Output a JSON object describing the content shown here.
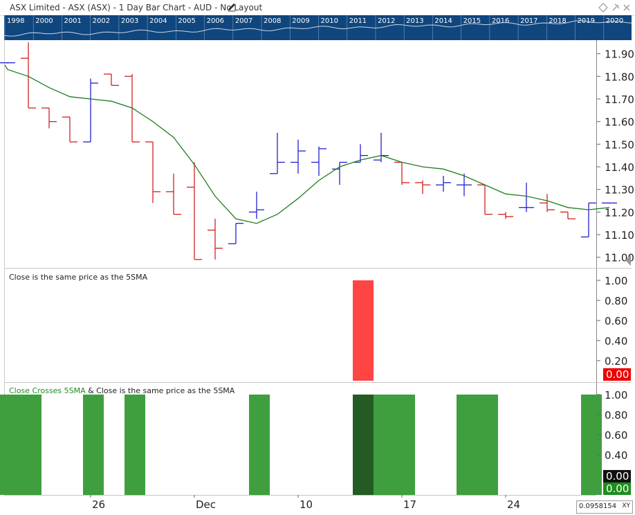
{
  "window": {
    "title": "ASX Limited - ASX (ASX) - 1 Day Bar Chart - AUD - No Layout",
    "edit_icon": "pencil-icon",
    "header_icons": [
      "diamond-icon",
      "pin-icon",
      "close-icon"
    ]
  },
  "timeline": {
    "years": [
      "1998",
      "2000",
      "2001",
      "2002",
      "2003",
      "2004",
      "2005",
      "2006",
      "2007",
      "2008",
      "2009",
      "2010",
      "2011",
      "2012",
      "2013",
      "2014",
      "2015",
      "2016",
      "2017",
      "2018",
      "2019",
      "2020"
    ],
    "background": "#10467e"
  },
  "colors": {
    "up_bar": "#1f1fd1",
    "down_bar": "#d11f1f",
    "sma_line": "#1e7d1e",
    "indicator_red": "#ff4444",
    "indicator_green": "#3f9f3f",
    "indicator_dark_green": "#245a24",
    "label_red_bg": "#ee0000",
    "label_green_bg": "#1e8c1e",
    "label_black_bg": "#111111"
  },
  "chart_data": [
    {
      "type": "bar",
      "subtype": "ohlc",
      "series_overlay": "5SMA",
      "ylim": [
        10.95,
        11.96
      ],
      "y_ticks": [
        "11.90",
        "11.80",
        "11.70",
        "11.60",
        "11.50",
        "11.40",
        "11.30",
        "11.20",
        "11.10",
        "11.00"
      ],
      "x_labels": [
        {
          "label": "26",
          "index": 4.5
        },
        {
          "label": "Dec",
          "index": 9.5
        },
        {
          "label": "10",
          "index": 14.5
        },
        {
          "label": "17",
          "index": 19.5
        },
        {
          "label": "24",
          "index": 24.5
        }
      ],
      "bars": [
        {
          "o": 11.86,
          "h": 11.86,
          "l": 11.86,
          "c": 11.86
        },
        {
          "o": 11.88,
          "h": 11.95,
          "l": 11.66,
          "c": 11.66
        },
        {
          "o": 11.66,
          "h": 11.66,
          "l": 11.57,
          "c": 11.6
        },
        {
          "o": 11.62,
          "h": 11.62,
          "l": 11.51,
          "c": 11.51
        },
        {
          "o": 11.51,
          "h": 11.79,
          "l": 11.51,
          "c": 11.77
        },
        {
          "o": 11.81,
          "h": 11.81,
          "l": 11.76,
          "c": 11.76
        },
        {
          "o": 11.8,
          "h": 11.81,
          "l": 11.51,
          "c": 11.51
        },
        {
          "o": 11.51,
          "h": 11.51,
          "l": 11.24,
          "c": 11.29
        },
        {
          "o": 11.29,
          "h": 11.37,
          "l": 11.19,
          "c": 11.19
        },
        {
          "o": 11.31,
          "h": 11.42,
          "l": 10.99,
          "c": 10.99
        },
        {
          "o": 11.12,
          "h": 11.17,
          "l": 10.99,
          "c": 11.04
        },
        {
          "o": 11.06,
          "h": 11.15,
          "l": 11.06,
          "c": 11.15
        },
        {
          "o": 11.2,
          "h": 11.29,
          "l": 11.17,
          "c": 11.21
        },
        {
          "o": 11.37,
          "h": 11.55,
          "l": 11.37,
          "c": 11.42
        },
        {
          "o": 11.42,
          "h": 11.52,
          "l": 11.37,
          "c": 11.47
        },
        {
          "o": 11.42,
          "h": 11.49,
          "l": 11.36,
          "c": 11.48
        },
        {
          "o": 11.39,
          "h": 11.42,
          "l": 11.32,
          "c": 11.42
        },
        {
          "o": 11.42,
          "h": 11.5,
          "l": 11.42,
          "c": 11.45
        },
        {
          "o": 11.43,
          "h": 11.55,
          "l": 11.42,
          "c": 11.45
        },
        {
          "o": 11.42,
          "h": 11.42,
          "l": 11.32,
          "c": 11.33
        },
        {
          "o": 11.33,
          "h": 11.34,
          "l": 11.28,
          "c": 11.32
        },
        {
          "o": 11.32,
          "h": 11.36,
          "l": 11.29,
          "c": 11.33
        },
        {
          "o": 11.32,
          "h": 11.37,
          "l": 11.27,
          "c": 11.32
        },
        {
          "o": 11.32,
          "h": 11.32,
          "l": 11.19,
          "c": 11.19
        },
        {
          "o": 11.19,
          "h": 11.2,
          "l": 11.17,
          "c": 11.18
        },
        {
          "o": 11.22,
          "h": 11.33,
          "l": 11.2,
          "c": 11.22
        },
        {
          "o": 11.24,
          "h": 11.28,
          "l": 11.2,
          "c": 11.21
        },
        {
          "o": 11.2,
          "h": 11.2,
          "l": 11.17,
          "c": 11.17
        },
        {
          "o": 11.09,
          "h": 11.24,
          "l": 11.09,
          "c": 11.24
        },
        {
          "o": 11.24,
          "h": 11.24,
          "l": 11.24,
          "c": 11.24
        }
      ],
      "sma": [
        11.83,
        11.8,
        11.75,
        11.71,
        11.7,
        11.69,
        11.66,
        11.6,
        11.53,
        11.41,
        11.27,
        11.17,
        11.15,
        11.19,
        11.26,
        11.34,
        11.4,
        11.43,
        11.45,
        11.42,
        11.4,
        11.39,
        11.36,
        11.32,
        11.28,
        11.27,
        11.25,
        11.22,
        11.21,
        11.22
      ]
    },
    {
      "type": "bar",
      "title": "Close is the same price as the 5SMA",
      "ylim": [
        0,
        1
      ],
      "y_ticks": [
        "1.00",
        "0.80",
        "0.60",
        "0.40",
        "0.20"
      ],
      "current_value_label": "0.00",
      "values": [
        0,
        0,
        0,
        0,
        0,
        0,
        0,
        0,
        0,
        0,
        0,
        0,
        0,
        0,
        0,
        0,
        0,
        1,
        0,
        0,
        0,
        0,
        0,
        0,
        0,
        0,
        0,
        0,
        0,
        0
      ]
    },
    {
      "type": "bar",
      "title_part1": "Close Crosses 5SMA",
      "title_part2": "& Close is the same price as the 5SMA",
      "ylim": [
        0,
        1
      ],
      "y_ticks": [
        "1.00",
        "0.80",
        "0.60",
        "0.40"
      ],
      "current_value_labels": [
        "0.00",
        "0.00"
      ],
      "series": [
        {
          "name": "Close Crosses 5SMA",
          "values": [
            1,
            1,
            0,
            0,
            1,
            0,
            1,
            0,
            0,
            0,
            0,
            0,
            1,
            0,
            0,
            0,
            0,
            1,
            1,
            1,
            0,
            0,
            1,
            1,
            0,
            0,
            0,
            0,
            1,
            0
          ]
        },
        {
          "name": "Close is the same price as the 5SMA",
          "values": [
            0,
            0,
            0,
            0,
            0,
            0,
            0,
            0,
            0,
            0,
            0,
            0,
            0,
            0,
            0,
            0,
            0,
            1,
            0,
            0,
            0,
            0,
            0,
            0,
            0,
            0,
            0,
            0,
            0,
            0
          ]
        }
      ]
    }
  ],
  "xy_readout": {
    "value": "0.0958154",
    "label": "XY"
  }
}
